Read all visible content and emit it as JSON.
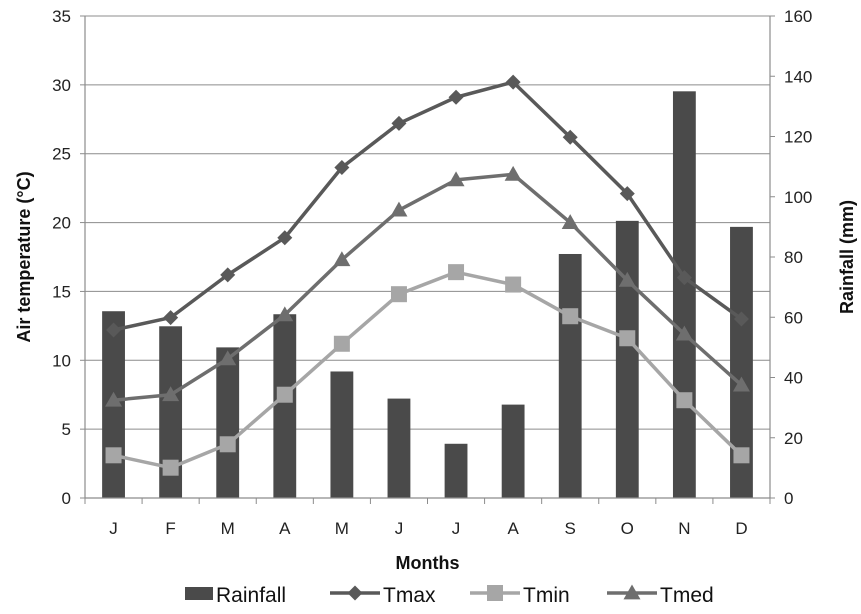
{
  "chart_data": {
    "type": "bar",
    "categories": [
      "J",
      "F",
      "M",
      "A",
      "M",
      "J",
      "J",
      "A",
      "S",
      "O",
      "N",
      "D"
    ],
    "xlabel": "Months",
    "ylabel": "Air temperature (°C)",
    "y2label": "Rainfall (mm)",
    "ylim": [
      0,
      35
    ],
    "yticks": [
      0,
      5,
      10,
      15,
      20,
      25,
      30,
      35
    ],
    "y2lim": [
      0,
      160
    ],
    "y2ticks": [
      0,
      20,
      40,
      60,
      80,
      100,
      120,
      140,
      160
    ],
    "grid": true,
    "legend_position": "bottom",
    "series": [
      {
        "name": "Rainfall",
        "type": "bar",
        "axis": "right",
        "color": "#4a4a4a",
        "values": [
          62,
          57,
          50,
          61,
          42,
          33,
          18,
          31,
          81,
          92,
          135,
          90
        ]
      },
      {
        "name": "Tmax",
        "type": "line",
        "axis": "left",
        "marker": "diamond",
        "color": "#595959",
        "values": [
          12.2,
          13.1,
          16.2,
          18.9,
          24.0,
          27.2,
          29.1,
          30.2,
          26.2,
          22.1,
          16.0,
          13.0
        ]
      },
      {
        "name": "Tmin",
        "type": "line",
        "axis": "left",
        "marker": "square",
        "color": "#a6a6a6",
        "values": [
          3.1,
          2.2,
          3.9,
          7.5,
          11.2,
          14.8,
          16.4,
          15.5,
          13.2,
          11.6,
          7.1,
          3.1
        ]
      },
      {
        "name": "Tmed",
        "type": "line",
        "axis": "left",
        "marker": "triangle",
        "color": "#6e6e6e",
        "values": [
          7.1,
          7.5,
          10.1,
          13.3,
          17.3,
          20.9,
          23.1,
          23.5,
          20.0,
          15.8,
          11.9,
          8.2
        ]
      }
    ]
  }
}
